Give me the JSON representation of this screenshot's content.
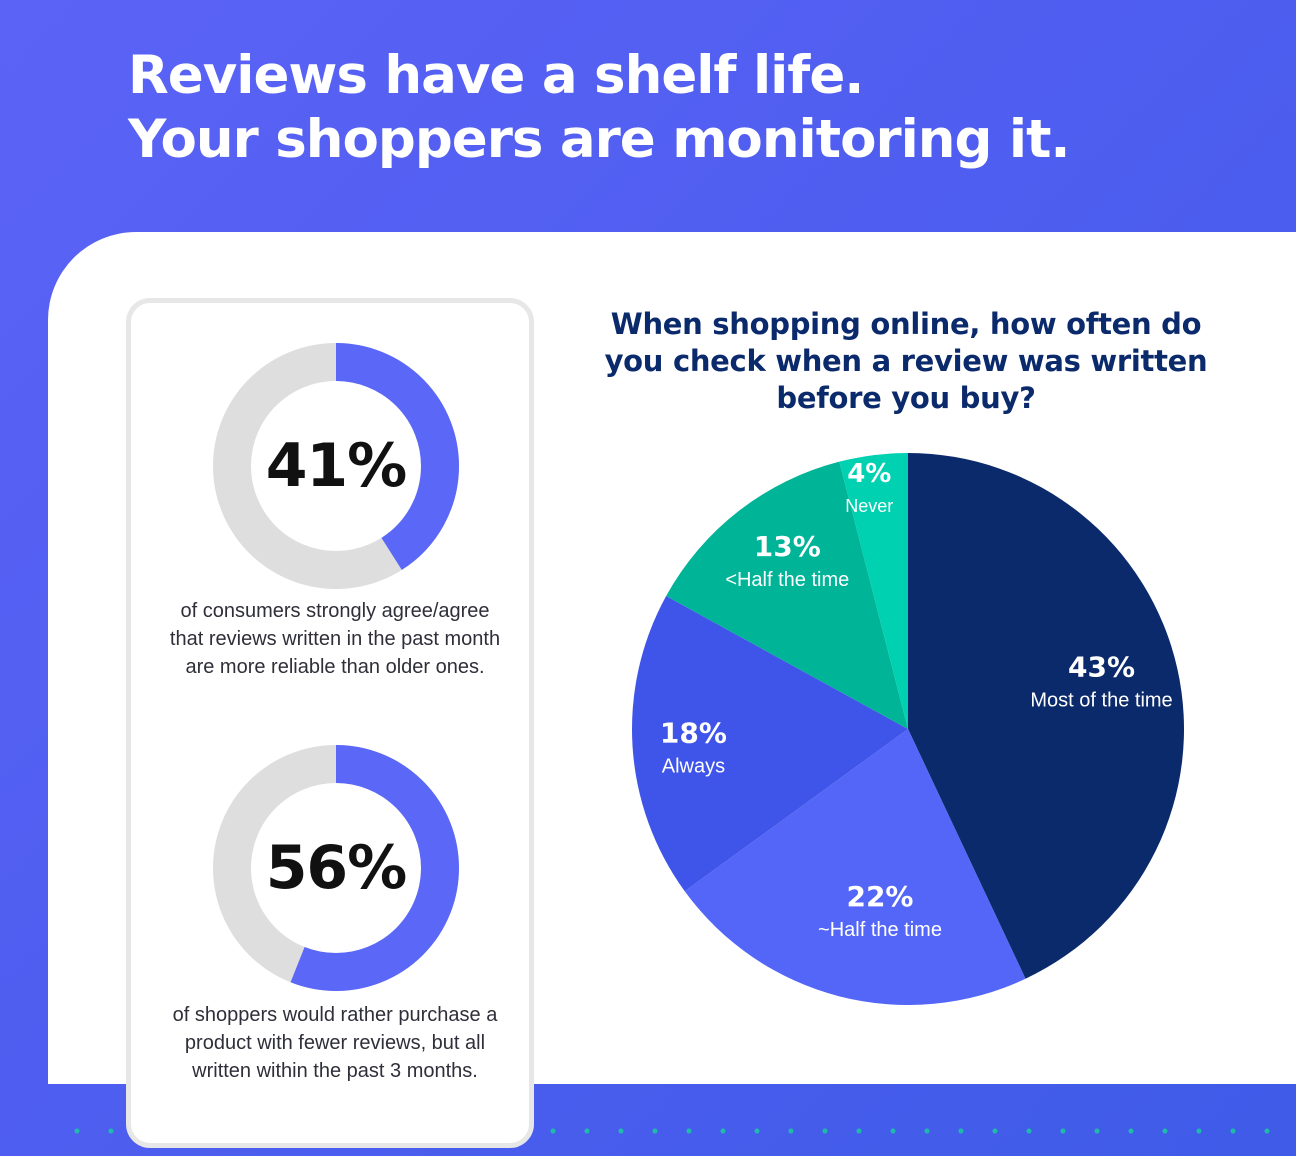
{
  "page": {
    "title_line_1": "Reviews have a shelf life.",
    "title_line_2": "Your shoppers are monitoring it."
  },
  "stats": [
    {
      "value": 41,
      "value_label": "41%",
      "description": "of consumers strongly agree/agree that reviews written in the past month are more reliable than older ones."
    },
    {
      "value": 56,
      "value_label": "56%",
      "description": "of shoppers would rather purchase a product with fewer reviews, but all written within the past 3 months."
    }
  ],
  "colors": {
    "background": "#4f5ef0",
    "accent": "#5a67f7",
    "ring_track": "#dedede",
    "pie_most": "#0b2a6b",
    "pie_half": "#5366f7",
    "pie_always": "#3f54e8",
    "pie_less_half": "#00b497",
    "pie_never": "#00d2b1",
    "dots": "#19c7a3"
  },
  "chart_data": {
    "type": "pie",
    "title": "When shopping online, how often do you check when a review was written before you buy?",
    "labels": [
      "Most of the time",
      "~Half the time",
      "Always",
      "<Half the time",
      "Never"
    ],
    "values": [
      43,
      22,
      18,
      13,
      4
    ],
    "value_labels": [
      "43%",
      "22%",
      "18%",
      "13%",
      "4%"
    ],
    "colors": [
      "#0b2a6b",
      "#5366f7",
      "#3f54e8",
      "#00b497",
      "#00d2b1"
    ]
  }
}
